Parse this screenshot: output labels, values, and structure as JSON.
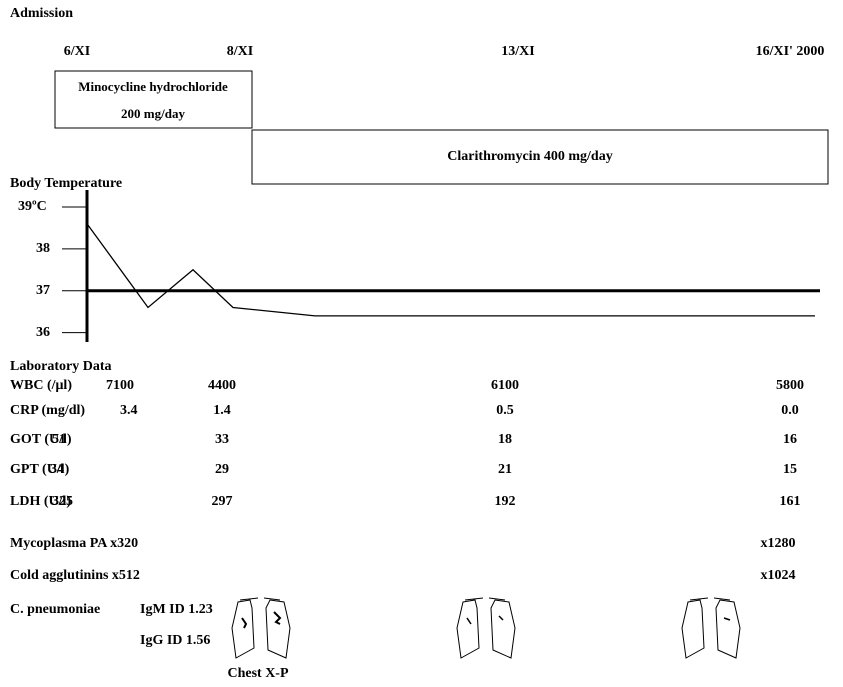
{
  "header": {
    "title": "Admission"
  },
  "dates": [
    "6/XI",
    "8/XI",
    "13/XI",
    "16/XI' 2000"
  ],
  "treatments": [
    {
      "lines": [
        "Minocycline hydrochloride",
        "200 mg/day"
      ]
    },
    {
      "lines": [
        "Clarithromycin 400 mg/day"
      ]
    }
  ],
  "temperature": {
    "label": "Body Temperature",
    "yticks": [
      {
        "value": 39,
        "label": "39ºC"
      },
      38,
      37,
      36
    ],
    "ylim": [
      35.8,
      39.5
    ],
    "reference": 37,
    "values": [
      38.6,
      36.6,
      37.5,
      36.6,
      36.4,
      36.4
    ]
  },
  "laboratory": {
    "title": "Laboratory Data",
    "rows": [
      {
        "label": "WBC (/μl)",
        "values": [
          "7100",
          "4400",
          "6100",
          "5800"
        ]
      },
      {
        "label": "CRP (mg/dl)",
        "values": [
          "3.4",
          "1.4",
          "0.5",
          "0.0"
        ]
      },
      {
        "label": "GOT (U/l)",
        "values": [
          "51",
          "33",
          "18",
          "16"
        ]
      },
      {
        "label": "GPT (U/l)",
        "values": [
          "34",
          "29",
          "21",
          "15"
        ]
      },
      {
        "label": "LDH (U/l)",
        "values": [
          "325",
          "297",
          "192",
          "161"
        ]
      }
    ]
  },
  "serology": [
    {
      "label": "Mycoplasma PA x320",
      "last": "x1280"
    },
    {
      "label": "Cold agglutinins x512",
      "last": "x1024"
    }
  ],
  "pneumoniae": {
    "label": "C. pneumoniae",
    "igm": "IgM ID 1.23",
    "igg": "IgG ID 1.56",
    "xray": "Chest X-P"
  }
}
